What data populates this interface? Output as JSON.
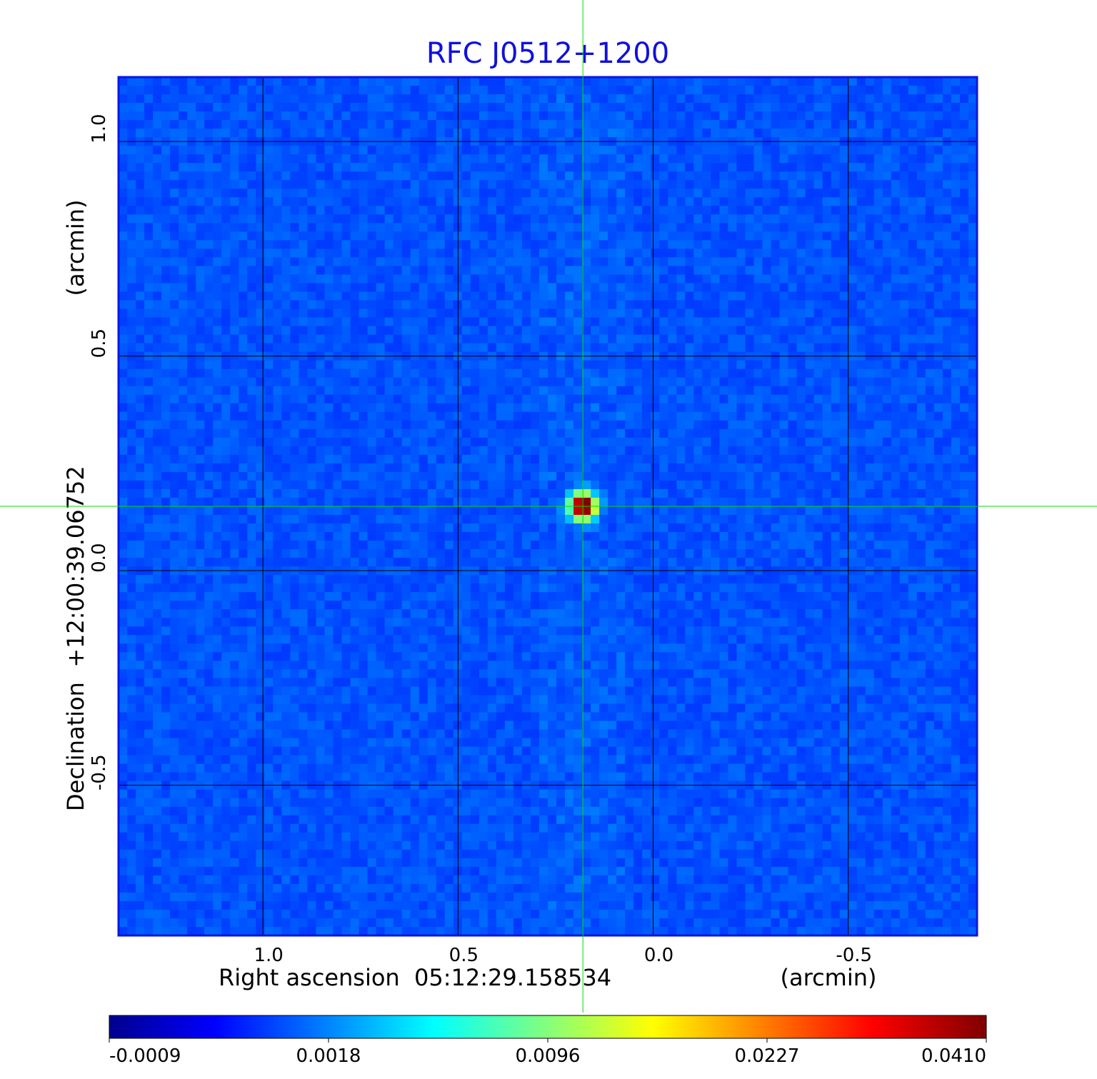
{
  "chart_data": {
    "type": "heatmap",
    "title": "RFC J0512+1200",
    "xlabel": "Right ascension  05:12:29.158534",
    "xunit": "(arcmin)",
    "ylabel": "Declination  +12:00:39.06752",
    "yunit": "(arcmin)",
    "xlim": [
      1.37,
      -0.83
    ],
    "ylim": [
      -0.85,
      1.15
    ],
    "xticks": [
      1.0,
      0.5,
      0.0,
      -0.5
    ],
    "xtick_labels": [
      "1.0",
      "0.5",
      "0.0",
      "-0.5"
    ],
    "yticks": [
      1.0,
      0.5,
      0.0,
      -0.5
    ],
    "ytick_labels": [
      "1.0",
      "0.5",
      "0.0",
      "-0.5"
    ],
    "grid": true,
    "colormap": "jet",
    "source_position": [
      0.18,
      0.15
    ],
    "peak_value": 0.041,
    "background_value": 0.0004,
    "colorbar": {
      "ticks": [
        -0.0009,
        0.0018,
        0.0096,
        0.0227,
        0.041
      ],
      "tick_labels": [
        "-0.0009",
        "0.0018",
        "0.0096",
        "0.0227",
        "0.0410"
      ]
    }
  },
  "colors": {
    "title": "#1010dd",
    "crosshair": "#00dd00",
    "grid": "#000000",
    "frame": "#0a16e0"
  }
}
